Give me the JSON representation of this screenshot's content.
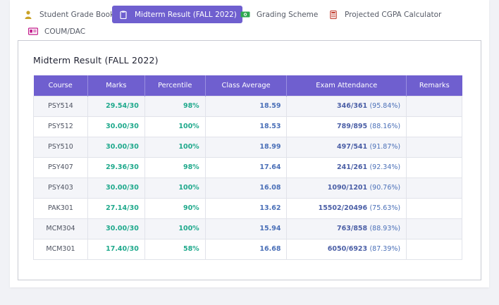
{
  "tabs": [
    {
      "label": "Student Grade Book",
      "icon": "user-icon",
      "active": false
    },
    {
      "label": "Midterm Result (FALL 2022)",
      "icon": "clipboard-icon",
      "active": true
    },
    {
      "label": "Grading Scheme",
      "icon": "money-icon",
      "active": false
    },
    {
      "label": "Projected CGPA Calculator",
      "icon": "calculator-icon",
      "active": false
    },
    {
      "label": "COUM/DAC",
      "icon": "id-card-icon",
      "active": false
    }
  ],
  "panel": {
    "title": "Midterm Result (FALL 2022)"
  },
  "table": {
    "headers": [
      "Course",
      "Marks",
      "Percentile",
      "Class Average",
      "Exam Attendance",
      "Remarks"
    ],
    "rows": [
      {
        "course": "PSY514",
        "marks": "29.54/30",
        "percentile": "98%",
        "average": "18.59",
        "attendance": "346/361",
        "attendance_pct": "(95.84%)",
        "remarks": ""
      },
      {
        "course": "PSY512",
        "marks": "30.00/30",
        "percentile": "100%",
        "average": "18.53",
        "attendance": "789/895",
        "attendance_pct": "(88.16%)",
        "remarks": ""
      },
      {
        "course": "PSY510",
        "marks": "30.00/30",
        "percentile": "100%",
        "average": "18.99",
        "attendance": "497/541",
        "attendance_pct": "(91.87%)",
        "remarks": ""
      },
      {
        "course": "PSY407",
        "marks": "29.36/30",
        "percentile": "98%",
        "average": "17.64",
        "attendance": "241/261",
        "attendance_pct": "(92.34%)",
        "remarks": ""
      },
      {
        "course": "PSY403",
        "marks": "30.00/30",
        "percentile": "100%",
        "average": "16.08",
        "attendance": "1090/1201",
        "attendance_pct": "(90.76%)",
        "remarks": ""
      },
      {
        "course": "PAK301",
        "marks": "27.14/30",
        "percentile": "90%",
        "average": "13.62",
        "attendance": "15502/20496",
        "attendance_pct": "(75.63%)",
        "remarks": ""
      },
      {
        "course": "MCM304",
        "marks": "30.00/30",
        "percentile": "100%",
        "average": "15.94",
        "attendance": "763/858",
        "attendance_pct": "(88.93%)",
        "remarks": ""
      },
      {
        "course": "MCM301",
        "marks": "17.40/30",
        "percentile": "58%",
        "average": "16.68",
        "attendance": "6050/6923",
        "attendance_pct": "(87.39%)",
        "remarks": ""
      }
    ]
  },
  "colors": {
    "accent": "#6f5fcf",
    "marks_green": "#1fa98c",
    "average_blue": "#4b70b8"
  }
}
